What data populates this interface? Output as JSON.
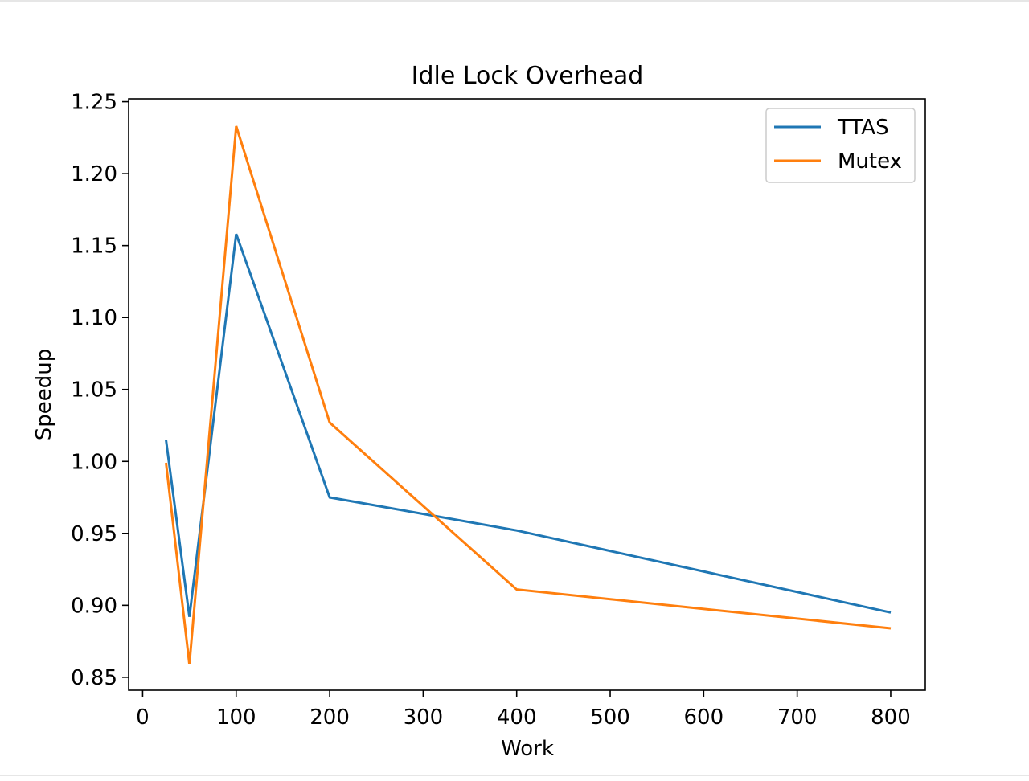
{
  "chart_data": {
    "type": "line",
    "title": "Idle Lock Overhead",
    "xlabel": "Work",
    "ylabel": "Speedup",
    "xlim": [
      -15,
      837
    ],
    "ylim": [
      0.841,
      1.252
    ],
    "xticks": [
      0,
      100,
      200,
      300,
      400,
      500,
      600,
      700,
      800
    ],
    "yticks": [
      0.85,
      0.9,
      0.95,
      1.0,
      1.05,
      1.1,
      1.15,
      1.2,
      1.25
    ],
    "ytick_labels": [
      "0.85",
      "0.90",
      "0.95",
      "1.00",
      "1.05",
      "1.10",
      "1.15",
      "1.20",
      "1.25"
    ],
    "grid": false,
    "legend_position": "top-right",
    "series": [
      {
        "name": "TTAS",
        "color": "#1f77b4",
        "x": [
          25,
          50,
          100,
          200,
          400,
          800
        ],
        "y": [
          1.015,
          0.892,
          1.158,
          0.975,
          0.952,
          0.895
        ]
      },
      {
        "name": "Mutex",
        "color": "#ff7f0e",
        "x": [
          25,
          50,
          100,
          200,
          400,
          800
        ],
        "y": [
          0.999,
          0.859,
          1.233,
          1.027,
          0.911,
          0.884
        ]
      }
    ]
  }
}
